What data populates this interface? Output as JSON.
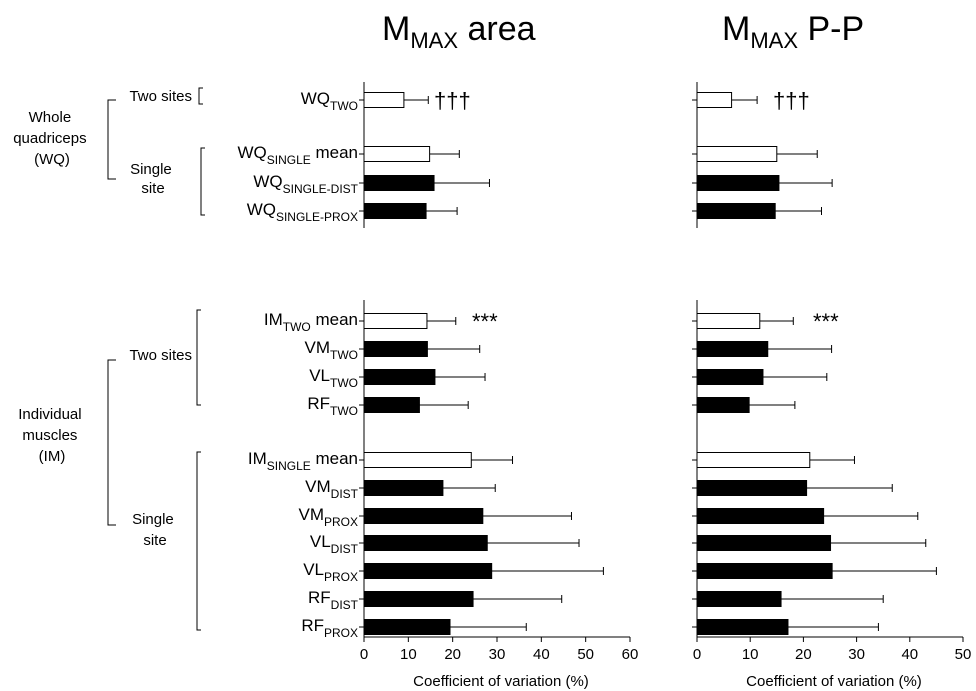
{
  "chart_data": [
    {
      "type": "bar",
      "orientation": "horizontal",
      "title": {
        "main": "M",
        "sub": "MAX",
        "rest": " area"
      },
      "xlabel": "Coefficient of variation (%)",
      "xlim": [
        0,
        60
      ],
      "xticks": [
        "0",
        "10",
        "20",
        "30",
        "40",
        "50",
        "60"
      ],
      "annotations": [
        {
          "row": "wq_two",
          "text": "†††"
        },
        {
          "row": "im_two_mean",
          "text": "***"
        }
      ],
      "bars": [
        {
          "row": "wq_two",
          "value": 9,
          "error": 5.5
        },
        {
          "row": "wq_single_mean",
          "value": 14.8,
          "error": 6.7
        },
        {
          "row": "wq_single_dist",
          "value": 15.8,
          "error": 12.5
        },
        {
          "row": "wq_single_prox",
          "value": 14,
          "error": 7
        },
        {
          "row": "im_two_mean",
          "value": 14.2,
          "error": 6.5
        },
        {
          "row": "vm_two",
          "value": 14.3,
          "error": 11.8
        },
        {
          "row": "vl_two",
          "value": 16,
          "error": 11.3
        },
        {
          "row": "rf_two",
          "value": 12.5,
          "error": 11
        },
        {
          "row": "im_single_mean",
          "value": 24.2,
          "error": 9.3
        },
        {
          "row": "vm_dist",
          "value": 17.8,
          "error": 11.8
        },
        {
          "row": "vm_prox",
          "value": 26.8,
          "error": 20
        },
        {
          "row": "vl_dist",
          "value": 27.8,
          "error": 20.7
        },
        {
          "row": "vl_prox",
          "value": 28.8,
          "error": 25.2
        },
        {
          "row": "rf_dist",
          "value": 24.6,
          "error": 20
        },
        {
          "row": "rf_prox",
          "value": 19.4,
          "error": 17.2
        }
      ]
    },
    {
      "type": "bar",
      "orientation": "horizontal",
      "title": {
        "main": "M",
        "sub": "MAX",
        "rest": " P-P"
      },
      "xlabel": "Coefficient of variation (%)",
      "xlim": [
        0,
        50
      ],
      "xticks": [
        "0",
        "10",
        "20",
        "30",
        "40",
        "50"
      ],
      "annotations": [
        {
          "row": "wq_two",
          "text": "†††"
        },
        {
          "row": "im_two_mean",
          "text": "***"
        }
      ],
      "bars": [
        {
          "row": "wq_two",
          "value": 6.5,
          "error": 4.8
        },
        {
          "row": "wq_single_mean",
          "value": 15,
          "error": 7.6
        },
        {
          "row": "wq_single_dist",
          "value": 15.4,
          "error": 10
        },
        {
          "row": "wq_single_prox",
          "value": 14.7,
          "error": 8.7
        },
        {
          "row": "im_two_mean",
          "value": 11.8,
          "error": 6.3
        },
        {
          "row": "vm_two",
          "value": 13.3,
          "error": 12
        },
        {
          "row": "vl_two",
          "value": 12.4,
          "error": 12
        },
        {
          "row": "rf_two",
          "value": 9.8,
          "error": 8.6
        },
        {
          "row": "im_single_mean",
          "value": 21.2,
          "error": 8.4
        },
        {
          "row": "vm_dist",
          "value": 20.6,
          "error": 16.1
        },
        {
          "row": "vm_prox",
          "value": 23.8,
          "error": 17.7
        },
        {
          "row": "vl_dist",
          "value": 25.1,
          "error": 17.9
        },
        {
          "row": "vl_prox",
          "value": 25.4,
          "error": 19.6
        },
        {
          "row": "rf_dist",
          "value": 15.8,
          "error": 19.2
        },
        {
          "row": "rf_prox",
          "value": 17.1,
          "error": 17
        }
      ]
    }
  ],
  "rows": [
    {
      "id": "wq_two",
      "main": "WQ",
      "sub": "TWO",
      "after": "",
      "fill": "#ffffff"
    },
    {
      "id": "wq_single_mean",
      "main": "WQ",
      "sub": "SINGLE",
      "after": " mean",
      "fill": "#ffffff"
    },
    {
      "id": "wq_single_dist",
      "main": "WQ",
      "sub": "SINGLE-DIST",
      "after": "",
      "fill": "#000000"
    },
    {
      "id": "wq_single_prox",
      "main": "WQ",
      "sub": "SINGLE-PROX",
      "after": "",
      "fill": "#000000"
    },
    {
      "id": "im_two_mean",
      "main": "IM",
      "sub": "TWO",
      "after": " mean",
      "fill": "#ffffff"
    },
    {
      "id": "vm_two",
      "main": "VM",
      "sub": "TWO",
      "after": "",
      "fill": "#000000"
    },
    {
      "id": "vl_two",
      "main": "VL",
      "sub": "TWO",
      "after": "",
      "fill": "#000000"
    },
    {
      "id": "rf_two",
      "main": "RF",
      "sub": "TWO",
      "after": "",
      "fill": "#000000"
    },
    {
      "id": "im_single_mean",
      "main": "IM",
      "sub": "SINGLE",
      "after": " mean",
      "fill": "#ffffff"
    },
    {
      "id": "vm_dist",
      "main": "VM",
      "sub": "DIST",
      "after": "",
      "fill": "#000000"
    },
    {
      "id": "vm_prox",
      "main": "VM",
      "sub": "PROX",
      "after": "",
      "fill": "#000000"
    },
    {
      "id": "vl_dist",
      "main": "VL",
      "sub": "DIST",
      "after": "",
      "fill": "#000000"
    },
    {
      "id": "vl_prox",
      "main": "VL",
      "sub": "PROX",
      "after": "",
      "fill": "#000000"
    },
    {
      "id": "rf_dist",
      "main": "RF",
      "sub": "DIST",
      "after": "",
      "fill": "#000000"
    },
    {
      "id": "rf_prox",
      "main": "RF",
      "sub": "PROX",
      "after": "",
      "fill": "#000000"
    }
  ],
  "groups": {
    "whole_quadriceps": {
      "line1": "Whole",
      "line2": "quadriceps",
      "line3": "(WQ)"
    },
    "wq_two_sites": "Two sites",
    "wq_single_site": {
      "line1": "Single",
      "line2": "site"
    },
    "individual_muscles": {
      "line1": "Individual",
      "line2": "muscles",
      "line3": "(IM)"
    },
    "im_two_sites": "Two sites",
    "im_single_site": {
      "line1": "Single",
      "line2": "site"
    }
  }
}
